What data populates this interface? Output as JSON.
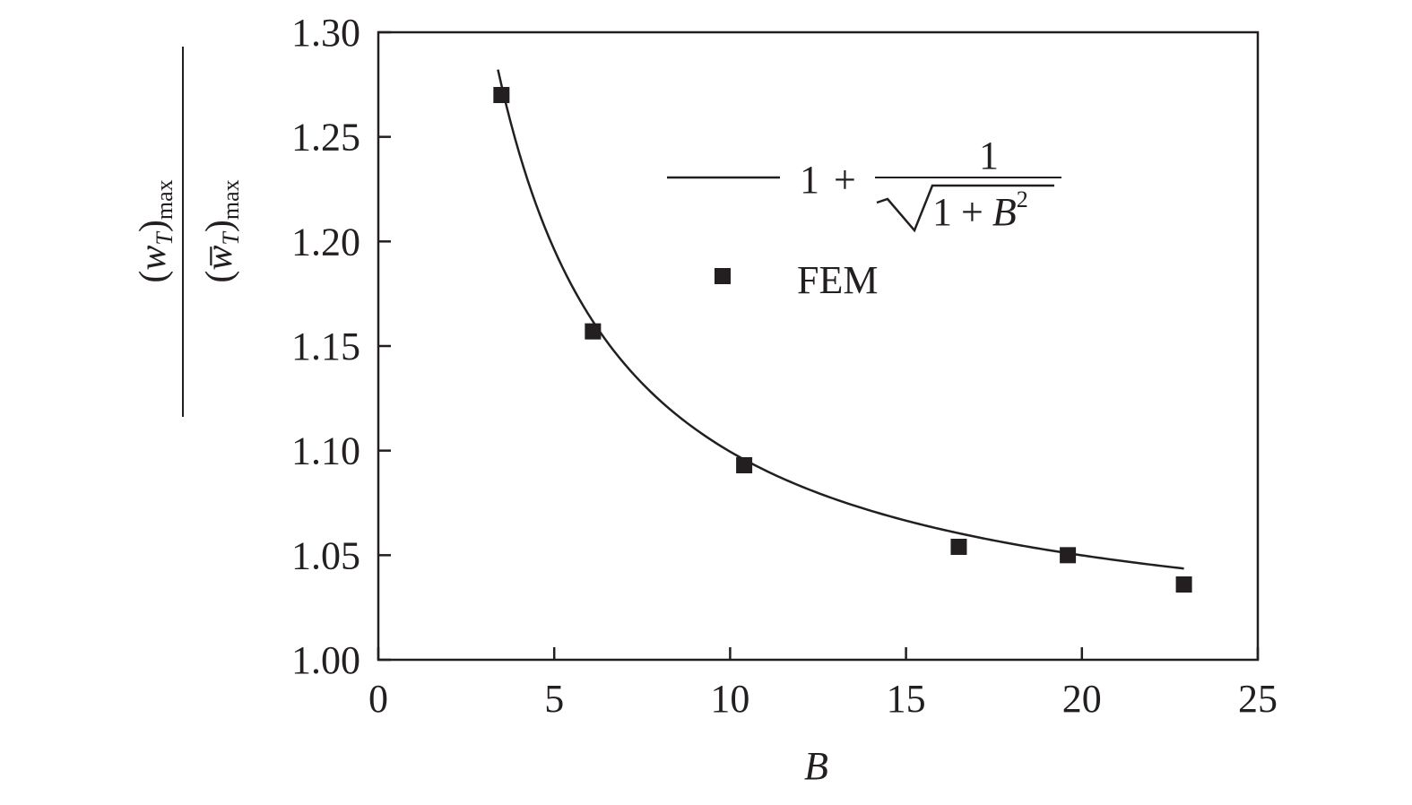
{
  "chart_data": {
    "type": "scatter",
    "title": "",
    "xlabel": "B",
    "ylabel": {
      "numerator": {
        "open": "(",
        "var": "w",
        "sub": "T",
        "close": ")",
        "suffix": "max"
      },
      "denominator": {
        "open": "(",
        "var": "w̅",
        "sub": "T",
        "close": ")",
        "suffix": "max"
      }
    },
    "xlim": [
      0,
      25
    ],
    "ylim": [
      1.0,
      1.3
    ],
    "xticks": [
      0,
      5,
      10,
      15,
      20,
      25
    ],
    "xtick_labels": [
      "0",
      "5",
      "10",
      "15",
      "20",
      "25"
    ],
    "yticks": [
      1.0,
      1.05,
      1.1,
      1.15,
      1.2,
      1.25,
      1.3
    ],
    "ytick_labels": [
      "1.00",
      "1.05",
      "1.10",
      "1.15",
      "1.20",
      "1.25",
      "1.30"
    ],
    "grid": false,
    "legend_position": "upper-right",
    "series": [
      {
        "kind": "line",
        "legend": {
          "one": "1",
          "plus": "+",
          "numerator": "1",
          "radicand_one": "1",
          "radicand_plus": "+",
          "radicand_var": "B",
          "radicand_exp": "2"
        },
        "x_range": [
          3.4,
          22.9
        ],
        "formula": "1 + 1/sqrt(1 + B^2)",
        "color": "#231f20"
      },
      {
        "kind": "scatter",
        "name": "FEM",
        "marker": "square",
        "color": "#231f20",
        "x": [
          3.5,
          6.1,
          10.4,
          16.5,
          19.6,
          22.9
        ],
        "y": [
          1.27,
          1.157,
          1.093,
          1.054,
          1.05,
          1.036
        ]
      }
    ]
  }
}
